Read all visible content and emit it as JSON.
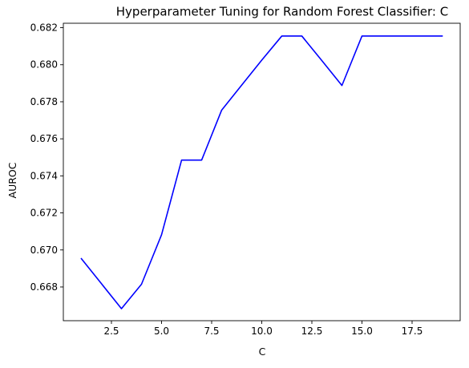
{
  "chart_data": {
    "type": "line",
    "title": "Hyperparameter Tuning for Random Forest Classifier: C",
    "xlabel": "C",
    "ylabel": "AUROC",
    "xlim": [
      0.1,
      19.9
    ],
    "ylim": [
      0.66618,
      0.68224
    ],
    "xticks": [
      2.5,
      5.0,
      7.5,
      10.0,
      12.5,
      15.0,
      17.5
    ],
    "xtick_labels": [
      "2.5",
      "5.0",
      "7.5",
      "10.0",
      "12.5",
      "15.0",
      "17.5"
    ],
    "yticks": [
      0.668,
      0.67,
      0.672,
      0.674,
      0.676,
      0.678,
      0.68,
      0.682
    ],
    "ytick_labels": [
      "0.668",
      "0.670",
      "0.672",
      "0.674",
      "0.676",
      "0.678",
      "0.680",
      "0.682"
    ],
    "grid": false,
    "legend": null,
    "series": [
      {
        "color": "#0000ff",
        "x": [
          1,
          2,
          3,
          4,
          5,
          6,
          7,
          8,
          9,
          10,
          11,
          12,
          13,
          14,
          15,
          16,
          17,
          18,
          19
        ],
        "y": [
          0.66953,
          0.66818,
          0.66683,
          0.66815,
          0.67082,
          0.67485,
          0.67485,
          0.67755,
          0.6789,
          0.68025,
          0.68155,
          0.68155,
          0.68022,
          0.67888,
          0.68155,
          0.68155,
          0.68155,
          0.68155,
          0.68155
        ]
      }
    ]
  }
}
